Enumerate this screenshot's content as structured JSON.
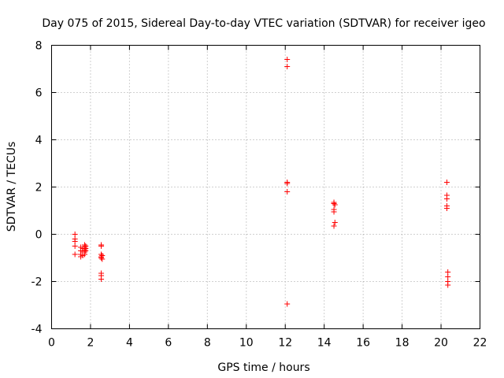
{
  "chart_data": {
    "type": "scatter",
    "title": "Day 075 of 2015, Sidereal Day-to-day VTEC variation (SDTVAR) for receiver igeo",
    "xlabel": "GPS time / hours",
    "ylabel": "SDTVAR / TECUs",
    "xlim": [
      0,
      22
    ],
    "ylim": [
      -4,
      8
    ],
    "xticks": [
      0,
      2,
      4,
      6,
      8,
      10,
      12,
      14,
      16,
      18,
      20,
      22
    ],
    "yticks": [
      -4,
      -2,
      0,
      2,
      4,
      6,
      8
    ],
    "marker": "+",
    "color": "#ff0000",
    "series": [
      {
        "name": "SDTVAR",
        "points": [
          [
            1.2,
            0.0
          ],
          [
            1.2,
            -0.2
          ],
          [
            1.2,
            -0.3
          ],
          [
            1.2,
            -0.5
          ],
          [
            1.2,
            -0.85
          ],
          [
            1.5,
            -0.55
          ],
          [
            1.5,
            -0.7
          ],
          [
            1.5,
            -0.85
          ],
          [
            1.5,
            -0.95
          ],
          [
            1.6,
            -0.6
          ],
          [
            1.6,
            -0.75
          ],
          [
            1.6,
            -0.9
          ],
          [
            1.7,
            -0.45
          ],
          [
            1.7,
            -0.55
          ],
          [
            1.7,
            -0.65
          ],
          [
            1.7,
            -0.75
          ],
          [
            1.7,
            -0.85
          ],
          [
            1.75,
            -0.5
          ],
          [
            1.75,
            -0.6
          ],
          [
            1.75,
            -0.7
          ],
          [
            2.55,
            -0.45
          ],
          [
            2.55,
            -0.5
          ],
          [
            2.55,
            -0.85
          ],
          [
            2.55,
            -0.95
          ],
          [
            2.55,
            -1.0
          ],
          [
            2.6,
            -0.9
          ],
          [
            2.6,
            -1.05
          ],
          [
            2.55,
            -1.65
          ],
          [
            2.55,
            -1.75
          ],
          [
            2.55,
            -1.9
          ],
          [
            12.1,
            7.4
          ],
          [
            12.1,
            7.1
          ],
          [
            12.1,
            2.2
          ],
          [
            12.1,
            2.15
          ],
          [
            12.1,
            1.8
          ],
          [
            12.1,
            -2.95
          ],
          [
            14.5,
            1.35
          ],
          [
            14.5,
            1.3
          ],
          [
            14.55,
            1.25
          ],
          [
            14.5,
            1.05
          ],
          [
            14.5,
            0.95
          ],
          [
            14.55,
            0.5
          ],
          [
            14.5,
            0.35
          ],
          [
            20.3,
            2.2
          ],
          [
            20.3,
            1.65
          ],
          [
            20.3,
            1.5
          ],
          [
            20.3,
            1.2
          ],
          [
            20.3,
            1.1
          ],
          [
            20.35,
            -1.6
          ],
          [
            20.35,
            -1.8
          ],
          [
            20.35,
            -2.0
          ],
          [
            20.35,
            -2.15
          ]
        ]
      }
    ]
  }
}
